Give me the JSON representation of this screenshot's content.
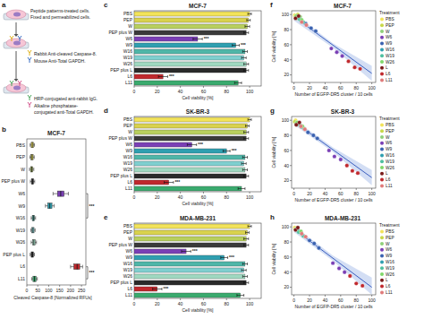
{
  "diagram": {
    "panel_label": "a",
    "steps": [
      {
        "lines": [
          "Peptide patterns-treated cells.",
          "Fixed and permeabilized cells."
        ]
      },
      {
        "reagents": [
          {
            "lines": [
              "Rabbit Anti-cleaved Caspase-8."
            ],
            "color": "#e0b21a"
          },
          {
            "lines": [
              "Mouse Anti-Total GAPDH."
            ],
            "color": "#3a6fc4"
          }
        ]
      },
      {
        "reagents": [
          {
            "lines": [
              "HRP-conjugated anti-rabbit IgG."
            ],
            "color": "#4aa55a"
          },
          {
            "lines": [
              "Alkaline phosphatase-",
              "conjugated anti-Total GAPDH."
            ],
            "color": "#d2508a"
          }
        ]
      }
    ]
  },
  "chart_data": [
    {
      "type": "box",
      "panel_label": "b",
      "title": "MCF-7",
      "orientation": "horizontal",
      "categories": [
        "PBS",
        "PEP",
        "W",
        "PEP plus W",
        "W6",
        "W9",
        "W16",
        "W19",
        "W26",
        "PEP plus L",
        "L6",
        "L11"
      ],
      "colors": [
        "#f2e35a",
        "#d9d24e",
        "#b8cf5e",
        "#3a3a3a",
        "#7a3fb5",
        "#2f9fb0",
        "#4fb6a8",
        "#7fcfcf",
        "#9fd8c0",
        "#2a2a2a",
        "#c0282d",
        "#3aaa6e"
      ],
      "whisker_low": [
        15,
        14,
        12,
        16,
        120,
        85,
        20,
        18,
        20,
        15,
        200,
        22
      ],
      "q1": [
        20,
        19,
        17,
        21,
        140,
        95,
        25,
        23,
        26,
        20,
        215,
        28
      ],
      "median": [
        25,
        24,
        22,
        26,
        155,
        105,
        30,
        28,
        32,
        25,
        230,
        35
      ],
      "q3": [
        30,
        29,
        27,
        31,
        170,
        115,
        35,
        33,
        38,
        30,
        242,
        42
      ],
      "whisker_high": [
        35,
        34,
        32,
        36,
        190,
        125,
        40,
        38,
        44,
        35,
        255,
        48
      ],
      "xlim": [
        0,
        270
      ],
      "xticks": [
        0,
        50,
        100,
        150,
        200,
        250
      ],
      "x_label": "Cleaved Caspase-8 [Normalized RFUs]",
      "significance": [
        {
          "from": "W6",
          "to": "W16",
          "label": "***"
        },
        {
          "from": "L6",
          "to": "L11",
          "label": "***"
        }
      ]
    },
    {
      "type": "bar",
      "panel_label": "c",
      "title": "MCF-7",
      "orientation": "horizontal",
      "categories": [
        "PBS",
        "PEP",
        "W",
        "PEP plus W",
        "W6",
        "W9",
        "W16",
        "W19",
        "W26",
        "PEP plus L",
        "L6",
        "L11"
      ],
      "values": [
        100,
        99,
        98,
        97,
        55,
        88,
        96,
        95,
        97,
        97,
        25,
        90
      ],
      "errors": [
        1.5,
        1.5,
        2,
        2,
        4,
        3,
        2,
        2,
        2,
        2,
        4,
        3
      ],
      "colors": [
        "#f2e35a",
        "#d9d24e",
        "#b8cf5e",
        "#3a3a3a",
        "#7a3fb5",
        "#2f9fb0",
        "#4fb6a8",
        "#7fcfcf",
        "#9fd8c0",
        "#2a2a2a",
        "#c0282d",
        "#3aaa6e"
      ],
      "xlim": [
        0,
        110
      ],
      "xticks": [
        0,
        20,
        40,
        60,
        80,
        100
      ],
      "x_label": "Cell viability [%]",
      "annotations": [
        {
          "category": "W6",
          "label": "***"
        },
        {
          "category": "W9",
          "label": "***"
        },
        {
          "category": "L6",
          "label": "***"
        }
      ]
    },
    {
      "type": "bar",
      "panel_label": "d",
      "title": "SK-BR-3",
      "orientation": "horizontal",
      "categories": [
        "PBS",
        "PEP",
        "W",
        "PEP plus W",
        "W6",
        "W9",
        "W16",
        "W19",
        "W26",
        "PEP plus L",
        "L6",
        "L11"
      ],
      "values": [
        100,
        98,
        97,
        97,
        50,
        80,
        96,
        95,
        96,
        97,
        30,
        93
      ],
      "errors": [
        1.5,
        1.5,
        2,
        2,
        4,
        3,
        2,
        2,
        2,
        2,
        4,
        3
      ],
      "colors": [
        "#f2e35a",
        "#d9d24e",
        "#b8cf5e",
        "#3a3a3a",
        "#7a3fb5",
        "#2f9fb0",
        "#4fb6a8",
        "#7fcfcf",
        "#9fd8c0",
        "#2a2a2a",
        "#c0282d",
        "#3aaa6e"
      ],
      "xlim": [
        0,
        110
      ],
      "xticks": [
        0,
        20,
        40,
        60,
        80,
        100
      ],
      "x_label": "Cell viability [%]",
      "annotations": [
        {
          "category": "W6",
          "label": "***"
        },
        {
          "category": "W9",
          "label": "***"
        },
        {
          "category": "L6",
          "label": "***"
        }
      ]
    },
    {
      "type": "bar",
      "panel_label": "e",
      "title": "MDA-MB-231",
      "orientation": "horizontal",
      "categories": [
        "PBS",
        "PEP",
        "W",
        "PEP plus W",
        "W6",
        "W9",
        "W16",
        "W19",
        "W26",
        "PEP plus L",
        "L6",
        "L11"
      ],
      "values": [
        100,
        98,
        97,
        97,
        45,
        78,
        96,
        95,
        96,
        97,
        20,
        92
      ],
      "errors": [
        1.5,
        1.5,
        2,
        2,
        4,
        3,
        2,
        2,
        2,
        2,
        4,
        3
      ],
      "colors": [
        "#f2e35a",
        "#d9d24e",
        "#b8cf5e",
        "#3a3a3a",
        "#7a3fb5",
        "#2f9fb0",
        "#4fb6a8",
        "#7fcfcf",
        "#9fd8c0",
        "#2a2a2a",
        "#c0282d",
        "#3aaa6e"
      ],
      "xlim": [
        0,
        110
      ],
      "xticks": [
        0,
        20,
        40,
        60,
        80,
        100
      ],
      "x_label": "Cell viability [%]",
      "annotations": [
        {
          "category": "W6",
          "label": "***"
        },
        {
          "category": "W9",
          "label": "***"
        },
        {
          "category": "L6",
          "label": "***"
        }
      ]
    },
    {
      "type": "scatter",
      "panel_label": "f",
      "title": "MCF-7",
      "x_label": "Number of EGFP-DR5 cluster / 10 cells",
      "y_label": "Cell viability [%]",
      "xlim": [
        -3,
        105
      ],
      "ylim": [
        10,
        105
      ],
      "xticks": [
        0,
        20,
        40,
        60,
        80,
        100
      ],
      "yticks": [
        20,
        40,
        60,
        80,
        100
      ],
      "legend": "right",
      "legend_title": "Treatment",
      "series": [
        {
          "name": "PBS",
          "color": "#f2e35a",
          "x": [
            1,
            3
          ],
          "values": [
            99,
            96
          ]
        },
        {
          "name": "PEP",
          "color": "#c8d84a",
          "x": [
            2,
            5
          ],
          "values": [
            97,
            100
          ]
        },
        {
          "name": "W",
          "color": "#8fd07a",
          "x": [
            4,
            8
          ],
          "values": [
            95,
            97
          ]
        },
        {
          "name": "W6",
          "color": "#7a3fb5",
          "x": [
            48,
            55,
            62
          ],
          "values": [
            55,
            50,
            45
          ]
        },
        {
          "name": "W9",
          "color": "#3a62b0",
          "x": [
            15,
            22,
            28
          ],
          "values": [
            88,
            82,
            78
          ]
        },
        {
          "name": "W16",
          "color": "#2f9fb0",
          "x": [
            5,
            9
          ],
          "values": [
            96,
            92
          ]
        },
        {
          "name": "W19",
          "color": "#4fc0a0",
          "x": [
            7,
            12
          ],
          "values": [
            94,
            90
          ]
        },
        {
          "name": "W26",
          "color": "#7fd86a",
          "x": [
            3,
            10
          ],
          "values": [
            98,
            93
          ]
        },
        {
          "name": "L",
          "color": "#7a1a1a",
          "x": [
            2,
            6
          ],
          "values": [
            95,
            98
          ]
        },
        {
          "name": "L6",
          "color": "#c0282d",
          "x": [
            70,
            78,
            85
          ],
          "values": [
            38,
            30,
            28
          ]
        },
        {
          "name": "L11",
          "color": "#e07a7a",
          "x": [
            10,
            16
          ],
          "values": [
            90,
            86
          ]
        }
      ],
      "fit": {
        "x": [
          0,
          100
        ],
        "values": [
          97,
          22
        ]
      },
      "band": {
        "x": [
          0,
          50,
          100
        ],
        "lower": [
          92,
          56,
          12
        ],
        "upper": [
          101,
          62,
          32
        ]
      }
    },
    {
      "type": "scatter",
      "panel_label": "g",
      "title": "SK-BR-3",
      "x_label": "Number of EGFP-DR5 cluster / 10 cells",
      "y_label": "Cell viability [%]",
      "xlim": [
        -3,
        105
      ],
      "ylim": [
        10,
        105
      ],
      "xticks": [
        0,
        20,
        40,
        60,
        80,
        100
      ],
      "yticks": [
        20,
        40,
        60,
        80,
        100
      ],
      "legend": "right",
      "legend_title": "Treatment",
      "series": [
        {
          "name": "PBS",
          "color": "#f2e35a",
          "x": [
            2,
            4
          ],
          "values": [
            100,
            97
          ]
        },
        {
          "name": "PEP",
          "color": "#c8d84a",
          "x": [
            1,
            6
          ],
          "values": [
            98,
            95
          ]
        },
        {
          "name": "W",
          "color": "#8fd07a",
          "x": [
            3,
            9
          ],
          "values": [
            96,
            93
          ]
        },
        {
          "name": "W6",
          "color": "#7a3fb5",
          "x": [
            45,
            52,
            60
          ],
          "values": [
            60,
            52,
            48
          ]
        },
        {
          "name": "W9",
          "color": "#3a62b0",
          "x": [
            18,
            25,
            30
          ],
          "values": [
            84,
            80,
            76
          ]
        },
        {
          "name": "W16",
          "color": "#2f9fb0",
          "x": [
            6,
            10
          ],
          "values": [
            95,
            91
          ]
        },
        {
          "name": "W19",
          "color": "#4fc0a0",
          "x": [
            8,
            13
          ],
          "values": [
            93,
            89
          ]
        },
        {
          "name": "W26",
          "color": "#7fd86a",
          "x": [
            4,
            11
          ],
          "values": [
            97,
            92
          ]
        },
        {
          "name": "L",
          "color": "#7a1a1a",
          "x": [
            3,
            7
          ],
          "values": [
            94,
            97
          ]
        },
        {
          "name": "L6",
          "color": "#c0282d",
          "x": [
            68,
            75,
            82
          ],
          "values": [
            40,
            33,
            30
          ]
        },
        {
          "name": "L11",
          "color": "#e07a7a",
          "x": [
            9,
            14
          ],
          "values": [
            92,
            88
          ]
        }
      ],
      "fit": {
        "x": [
          0,
          100
        ],
        "values": [
          98,
          24
        ]
      },
      "band": {
        "x": [
          0,
          50,
          100
        ],
        "lower": [
          94,
          58,
          14
        ],
        "upper": [
          101,
          64,
          34
        ]
      }
    },
    {
      "type": "scatter",
      "panel_label": "h",
      "title": "MDA-MB-231",
      "x_label": "Number of EGFP-DR5 cluster / 10 cells",
      "y_label": "Cell viability [%]",
      "xlim": [
        -3,
        105
      ],
      "ylim": [
        10,
        105
      ],
      "xticks": [
        0,
        20,
        40,
        60,
        80,
        100
      ],
      "yticks": [
        20,
        40,
        60,
        80,
        100
      ],
      "legend": "right",
      "legend_title": "Treatment",
      "series": [
        {
          "name": "PBS",
          "color": "#f2e35a",
          "x": [
            1,
            4
          ],
          "values": [
            99,
            96
          ]
        },
        {
          "name": "PEP",
          "color": "#c8d84a",
          "x": [
            2,
            7
          ],
          "values": [
            97,
            94
          ]
        },
        {
          "name": "W",
          "color": "#8fd07a",
          "x": [
            3,
            8
          ],
          "values": [
            98,
            93
          ]
        },
        {
          "name": "W6",
          "color": "#7a3fb5",
          "x": [
            50,
            58,
            65
          ],
          "values": [
            52,
            45,
            40
          ]
        },
        {
          "name": "W9",
          "color": "#3a62b0",
          "x": [
            20,
            26,
            32
          ],
          "values": [
            82,
            78,
            72
          ]
        },
        {
          "name": "W16",
          "color": "#2f9fb0",
          "x": [
            5,
            9
          ],
          "values": [
            95,
            92
          ]
        },
        {
          "name": "W19",
          "color": "#4fc0a0",
          "x": [
            6,
            12
          ],
          "values": [
            93,
            88
          ]
        },
        {
          "name": "W26",
          "color": "#7fd86a",
          "x": [
            3,
            9
          ],
          "values": [
            97,
            94
          ]
        },
        {
          "name": "L",
          "color": "#7a1a1a",
          "x": [
            2,
            5
          ],
          "values": [
            96,
            99
          ]
        },
        {
          "name": "L6",
          "color": "#c0282d",
          "x": [
            72,
            80,
            88
          ],
          "values": [
            35,
            25,
            22
          ]
        },
        {
          "name": "L11",
          "color": "#e07a7a",
          "x": [
            10,
            15
          ],
          "values": [
            91,
            87
          ]
        }
      ],
      "fit": {
        "x": [
          0,
          100
        ],
        "values": [
          97,
          20
        ]
      },
      "band": {
        "x": [
          0,
          50,
          100
        ],
        "lower": [
          93,
          55,
          10
        ],
        "upper": [
          101,
          62,
          33
        ]
      }
    }
  ]
}
